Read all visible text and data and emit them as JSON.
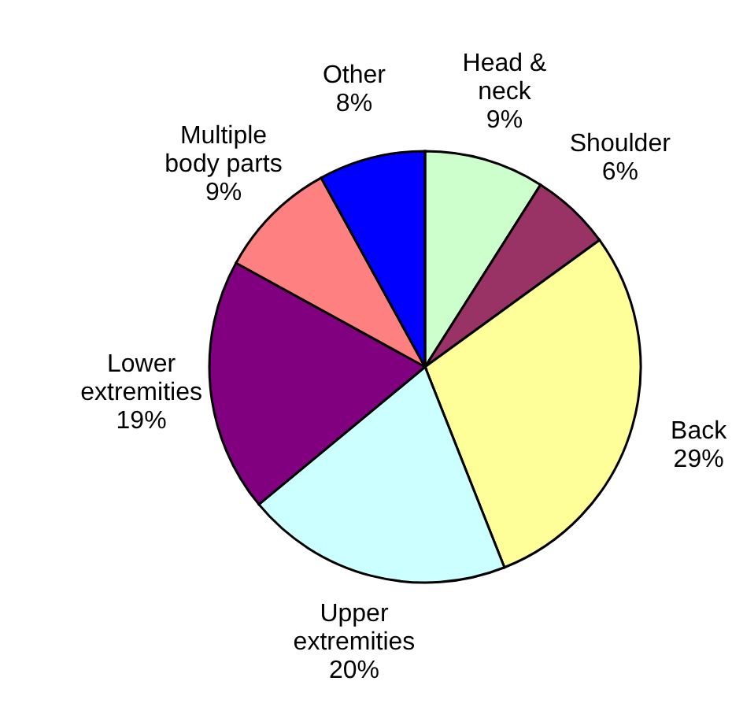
{
  "chart_data": {
    "type": "pie",
    "categories": [
      "Head & neck",
      "Shoulder",
      "Back",
      "Upper extremities",
      "Lower extremities",
      "Multiple body parts",
      "Other"
    ],
    "values": [
      9,
      6,
      29,
      20,
      19,
      9,
      8
    ],
    "value_labels": [
      "9%",
      "6%",
      "29%",
      "20%",
      "19%",
      "9%",
      "8%"
    ],
    "colors": [
      "#ccffcc",
      "#993366",
      "#ffff99",
      "#ccffff",
      "#800080",
      "#ff8080",
      "#0000ff"
    ]
  }
}
